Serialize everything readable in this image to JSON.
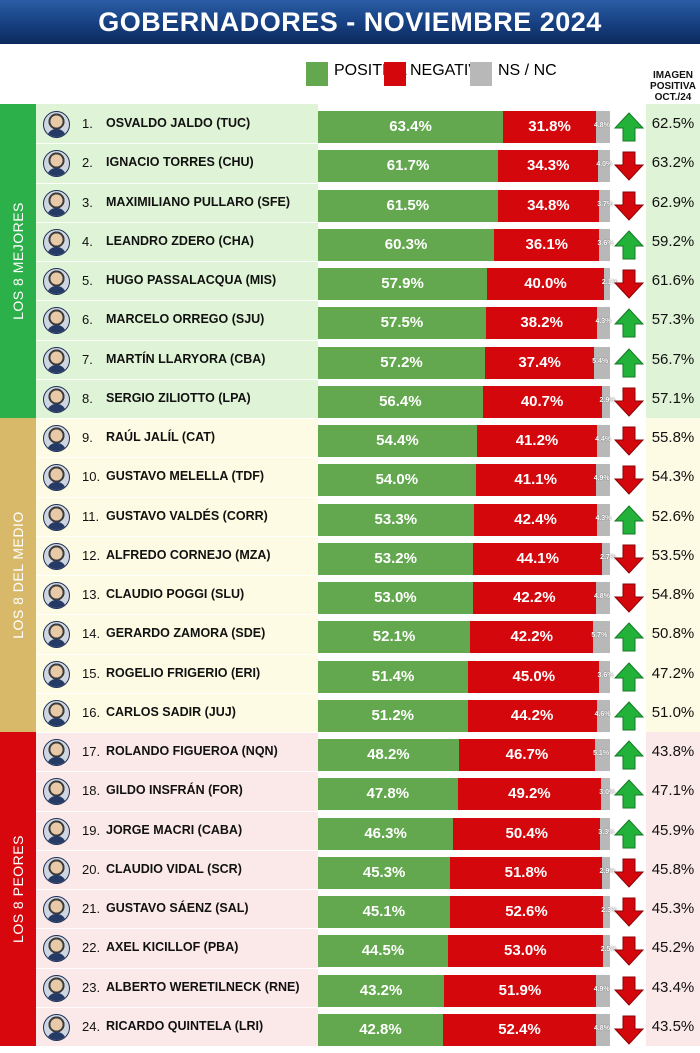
{
  "title": "GOBERNADORES - NOVIEMBRE 2024",
  "legend": [
    {
      "label": "POSITIVA",
      "color": "#63a84e"
    },
    {
      "label": "NEGATIVA",
      "color": "#d4070d"
    },
    {
      "label": "NS / NC",
      "color": "#b8b8b8"
    }
  ],
  "prev_header": [
    "IMAGEN",
    "POSITIVA",
    "OCT./24"
  ],
  "groups": [
    {
      "label": "LOS 8 MEJORES",
      "band_color": "#2cb14a",
      "bg_color": "#dff3d6",
      "prev_bg": "#dff3d6"
    },
    {
      "label": "LOS 8 DEL MEDIO",
      "band_color": "#d8b96a",
      "bg_color": "#fdfbe3",
      "prev_bg": "#fdfbe3"
    },
    {
      "label": "LOS 8 PEORES",
      "band_color": "#d8070d",
      "bg_color": "#fbe9ea",
      "prev_bg": "#fbe9ea"
    }
  ],
  "chart_data": {
    "type": "bar",
    "stacked": true,
    "orientation": "horizontal",
    "title": "GOBERNADORES - NOVIEMBRE 2024",
    "series_names": [
      "POSITIVA",
      "NEGATIVA",
      "NS / NC"
    ],
    "rows": [
      {
        "rank": "1.",
        "name": "OSVALDO JALDO (TUC)",
        "positiva": 63.4,
        "negativa": 31.8,
        "nsnc": 4.8,
        "trend": "up",
        "previous": "62.5%"
      },
      {
        "rank": "2.",
        "name": "IGNACIO TORRES (CHU)",
        "positiva": 61.7,
        "negativa": 34.3,
        "nsnc": 4.0,
        "trend": "down",
        "previous": "63.2%"
      },
      {
        "rank": "3.",
        "name": "MAXIMILIANO PULLARO (SFE)",
        "positiva": 61.5,
        "negativa": 34.8,
        "nsnc": 3.7,
        "trend": "down",
        "previous": "62.9%"
      },
      {
        "rank": "4.",
        "name": "LEANDRO ZDERO (CHA)",
        "positiva": 60.3,
        "negativa": 36.1,
        "nsnc": 3.6,
        "trend": "up",
        "previous": "59.2%"
      },
      {
        "rank": "5.",
        "name": "HUGO PASSALACQUA (MIS)",
        "positiva": 57.9,
        "negativa": 40.0,
        "nsnc": 2.1,
        "trend": "down",
        "previous": "61.6%"
      },
      {
        "rank": "6.",
        "name": "MARCELO ORREGO (SJU)",
        "positiva": 57.5,
        "negativa": 38.2,
        "nsnc": 4.3,
        "trend": "up",
        "previous": "57.3%"
      },
      {
        "rank": "7.",
        "name": "MARTÍN LLARYORA (CBA)",
        "positiva": 57.2,
        "negativa": 37.4,
        "nsnc": 5.4,
        "trend": "up",
        "previous": "56.7%"
      },
      {
        "rank": "8.",
        "name": "SERGIO ZILIOTTO (LPA)",
        "positiva": 56.4,
        "negativa": 40.7,
        "nsnc": 2.9,
        "trend": "down",
        "previous": "57.1%"
      },
      {
        "rank": "9.",
        "name": "RAÚL JALÍL (CAT)",
        "positiva": 54.4,
        "negativa": 41.2,
        "nsnc": 4.4,
        "trend": "down",
        "previous": "55.8%"
      },
      {
        "rank": "10.",
        "name": "GUSTAVO MELELLA (TDF)",
        "positiva": 54.0,
        "negativa": 41.1,
        "nsnc": 4.9,
        "trend": "down",
        "previous": "54.3%"
      },
      {
        "rank": "11.",
        "name": "GUSTAVO VALDÉS (CORR)",
        "positiva": 53.3,
        "negativa": 42.4,
        "nsnc": 4.3,
        "trend": "up",
        "previous": "52.6%"
      },
      {
        "rank": "12.",
        "name": "ALFREDO CORNEJO (MZA)",
        "positiva": 53.2,
        "negativa": 44.1,
        "nsnc": 2.7,
        "trend": "down",
        "previous": "53.5%"
      },
      {
        "rank": "13.",
        "name": "CLAUDIO POGGI (SLU)",
        "positiva": 53.0,
        "negativa": 42.2,
        "nsnc": 4.8,
        "trend": "down",
        "previous": "54.8%"
      },
      {
        "rank": "14.",
        "name": "GERARDO ZAMORA (SDE)",
        "positiva": 52.1,
        "negativa": 42.2,
        "nsnc": 5.7,
        "trend": "up",
        "previous": "50.8%"
      },
      {
        "rank": "15.",
        "name": "ROGELIO FRIGERIO (ERI)",
        "positiva": 51.4,
        "negativa": 45.0,
        "nsnc": 3.6,
        "trend": "up",
        "previous": "47.2%"
      },
      {
        "rank": "16.",
        "name": "CARLOS SADIR (JUJ)",
        "positiva": 51.2,
        "negativa": 44.2,
        "nsnc": 4.6,
        "trend": "up",
        "previous": "51.0%"
      },
      {
        "rank": "17.",
        "name": "ROLANDO FIGUEROA (NQN)",
        "positiva": 48.2,
        "negativa": 46.7,
        "nsnc": 5.1,
        "trend": "up",
        "previous": "43.8%"
      },
      {
        "rank": "18.",
        "name": "GILDO INSFRÁN (FOR)",
        "positiva": 47.8,
        "negativa": 49.2,
        "nsnc": 3.0,
        "trend": "up",
        "previous": "47.1%"
      },
      {
        "rank": "19.",
        "name": "JORGE MACRI (CABA)",
        "positiva": 46.3,
        "negativa": 50.4,
        "nsnc": 3.3,
        "trend": "up",
        "previous": "45.9%"
      },
      {
        "rank": "20.",
        "name": "CLAUDIO VIDAL (SCR)",
        "positiva": 45.3,
        "negativa": 51.8,
        "nsnc": 2.9,
        "trend": "down",
        "previous": "45.8%"
      },
      {
        "rank": "21.",
        "name": "GUSTAVO SÁENZ (SAL)",
        "positiva": 45.1,
        "negativa": 52.6,
        "nsnc": 2.3,
        "trend": "down",
        "previous": "45.3%"
      },
      {
        "rank": "22.",
        "name": "AXEL KICILLOF (PBA)",
        "positiva": 44.5,
        "negativa": 53.0,
        "nsnc": 2.5,
        "trend": "down",
        "previous": "45.2%"
      },
      {
        "rank": "23.",
        "name": "ALBERTO WERETILNECK (RNE)",
        "positiva": 43.2,
        "negativa": 51.9,
        "nsnc": 4.9,
        "trend": "down",
        "previous": "43.4%"
      },
      {
        "rank": "24.",
        "name": "RICARDO QUINTELA (LRI)",
        "positiva": 42.8,
        "negativa": 52.4,
        "nsnc": 4.8,
        "trend": "down",
        "previous": "43.5%"
      }
    ]
  },
  "colors": {
    "up_arrow": "#22b23a",
    "down_arrow": "#d4070d"
  }
}
